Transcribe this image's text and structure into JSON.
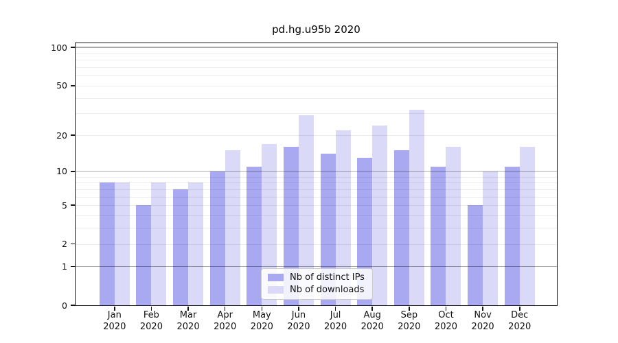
{
  "chart_data": {
    "type": "bar",
    "title": "pd.hg.u95b 2020",
    "categories": [
      "Jan 2020",
      "Feb 2020",
      "Mar 2020",
      "Apr 2020",
      "May 2020",
      "Jun 2020",
      "Jul 2020",
      "Aug 2020",
      "Sep 2020",
      "Oct 2020",
      "Nov 2020",
      "Dec 2020"
    ],
    "series": [
      {
        "name": "Nb of distinct IPs",
        "color": "#a9a9f2",
        "values": [
          8,
          5,
          7,
          10,
          11,
          16,
          14,
          13,
          15,
          11,
          5,
          11
        ]
      },
      {
        "name": "Nb of downloads",
        "color": "#dadaf8",
        "values": [
          8,
          8,
          8,
          15,
          17,
          29,
          22,
          24,
          32,
          16,
          10,
          16
        ]
      }
    ],
    "xlabel": "",
    "ylabel": "",
    "yscale": "log10(1+y)",
    "yticks": [
      0,
      1,
      2,
      5,
      10,
      20,
      50,
      100
    ],
    "minor_gridlines": [
      2,
      3,
      4,
      6,
      7,
      8,
      9,
      5,
      20,
      30,
      40,
      50,
      60,
      70,
      80,
      90
    ],
    "major_gridlines": [
      1,
      10,
      100
    ],
    "ylim": [
      0,
      110
    ],
    "grid": "horizontal",
    "legend_position": "inside-bottom-center",
    "axis_color": "#141414",
    "background_color": "#ffffff"
  }
}
